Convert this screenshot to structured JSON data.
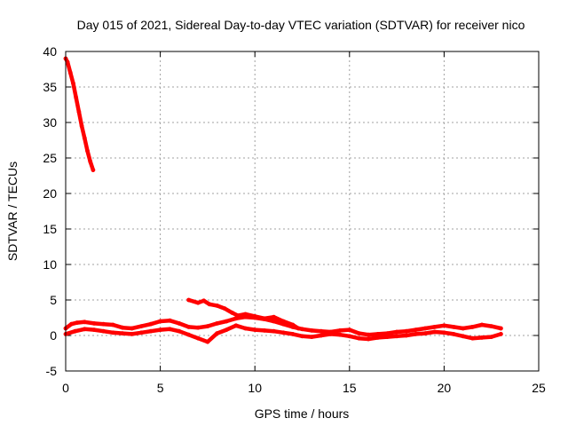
{
  "chart_data": {
    "type": "line",
    "title": "Day 015 of 2021, Sidereal Day-to-day VTEC variation (SDTVAR) for receiver nico",
    "xlabel": "GPS time / hours",
    "ylabel": "SDTVAR / TECUs",
    "xlim": [
      0,
      25
    ],
    "ylim": [
      -5,
      40
    ],
    "xticks": [
      0,
      5,
      10,
      15,
      20,
      25
    ],
    "yticks": [
      -5,
      0,
      5,
      10,
      15,
      20,
      25,
      30,
      35,
      40
    ],
    "grid": true,
    "color": "#ff0000",
    "series": [
      {
        "name": "early-decay",
        "x": [
          0.0,
          0.1,
          0.25,
          0.4,
          0.55,
          0.7,
          0.85,
          1.0,
          1.15,
          1.3,
          1.45
        ],
        "y": [
          39.0,
          38.5,
          37.0,
          35.5,
          33.5,
          31.5,
          29.5,
          27.8,
          26.0,
          24.5,
          23.3
        ]
      },
      {
        "name": "main-upper",
        "x": [
          0.0,
          0.3,
          0.6,
          1.0,
          1.5,
          2.0,
          2.5,
          3.0,
          3.5,
          4.0,
          4.5,
          5.0,
          5.5,
          6.0,
          6.5,
          7.0,
          7.5,
          8.0,
          8.5,
          9.0,
          9.5,
          10.0,
          10.5,
          11.0,
          11.5,
          12.0,
          12.5,
          13.0,
          13.5,
          14.0,
          14.5,
          15.0,
          15.5,
          16.0,
          16.5,
          17.0,
          17.5,
          18.0,
          18.5,
          19.0,
          19.5,
          20.0,
          20.5,
          21.0,
          21.5,
          22.0,
          22.5,
          23.0
        ],
        "y": [
          1.0,
          1.6,
          1.8,
          1.9,
          1.7,
          1.6,
          1.5,
          1.1,
          1.0,
          1.3,
          1.6,
          2.0,
          2.1,
          1.7,
          1.2,
          1.1,
          1.3,
          1.7,
          2.0,
          2.4,
          2.6,
          2.5,
          2.3,
          2.0,
          1.6,
          1.2,
          0.9,
          0.7,
          0.6,
          0.5,
          0.7,
          0.8,
          0.3,
          0.1,
          0.2,
          0.3,
          0.5,
          0.6,
          0.8,
          1.0,
          1.2,
          1.4,
          1.2,
          1.0,
          1.2,
          1.5,
          1.3,
          1.0
        ]
      },
      {
        "name": "main-lower",
        "x": [
          0.0,
          0.5,
          1.0,
          1.5,
          2.0,
          2.5,
          3.0,
          3.5,
          4.0,
          4.5,
          5.0,
          5.5,
          6.0,
          6.5,
          7.0,
          7.5,
          8.0,
          8.5,
          9.0,
          9.5,
          10.0,
          10.5,
          11.0,
          11.5,
          12.0,
          12.5,
          13.0,
          13.5,
          14.0,
          14.5,
          15.0,
          15.5,
          16.0,
          16.5,
          17.0,
          17.5,
          18.0,
          18.5,
          19.0,
          19.5,
          20.0,
          20.5,
          21.0,
          21.5,
          22.0,
          22.5,
          23.0
        ],
        "y": [
          0.2,
          0.6,
          0.9,
          0.8,
          0.6,
          0.4,
          0.3,
          0.2,
          0.4,
          0.6,
          0.8,
          0.9,
          0.6,
          0.1,
          -0.4,
          -0.9,
          0.3,
          0.8,
          1.4,
          1.0,
          0.8,
          0.7,
          0.6,
          0.4,
          0.2,
          -0.1,
          -0.2,
          0.0,
          0.2,
          0.1,
          -0.1,
          -0.4,
          -0.5,
          -0.3,
          -0.2,
          -0.1,
          0.0,
          0.2,
          0.3,
          0.5,
          0.4,
          0.2,
          -0.1,
          -0.4,
          -0.3,
          -0.2,
          0.2
        ]
      },
      {
        "name": "evening-branch",
        "x": [
          6.5,
          7.0,
          7.3,
          7.6,
          8.0,
          8.4,
          8.8,
          9.1,
          9.5,
          10.0,
          10.5,
          11.0,
          11.5,
          12.0,
          12.3
        ],
        "y": [
          5.0,
          4.6,
          4.9,
          4.4,
          4.2,
          3.8,
          3.2,
          2.8,
          3.0,
          2.7,
          2.4,
          2.6,
          2.0,
          1.5,
          1.0
        ]
      }
    ]
  }
}
